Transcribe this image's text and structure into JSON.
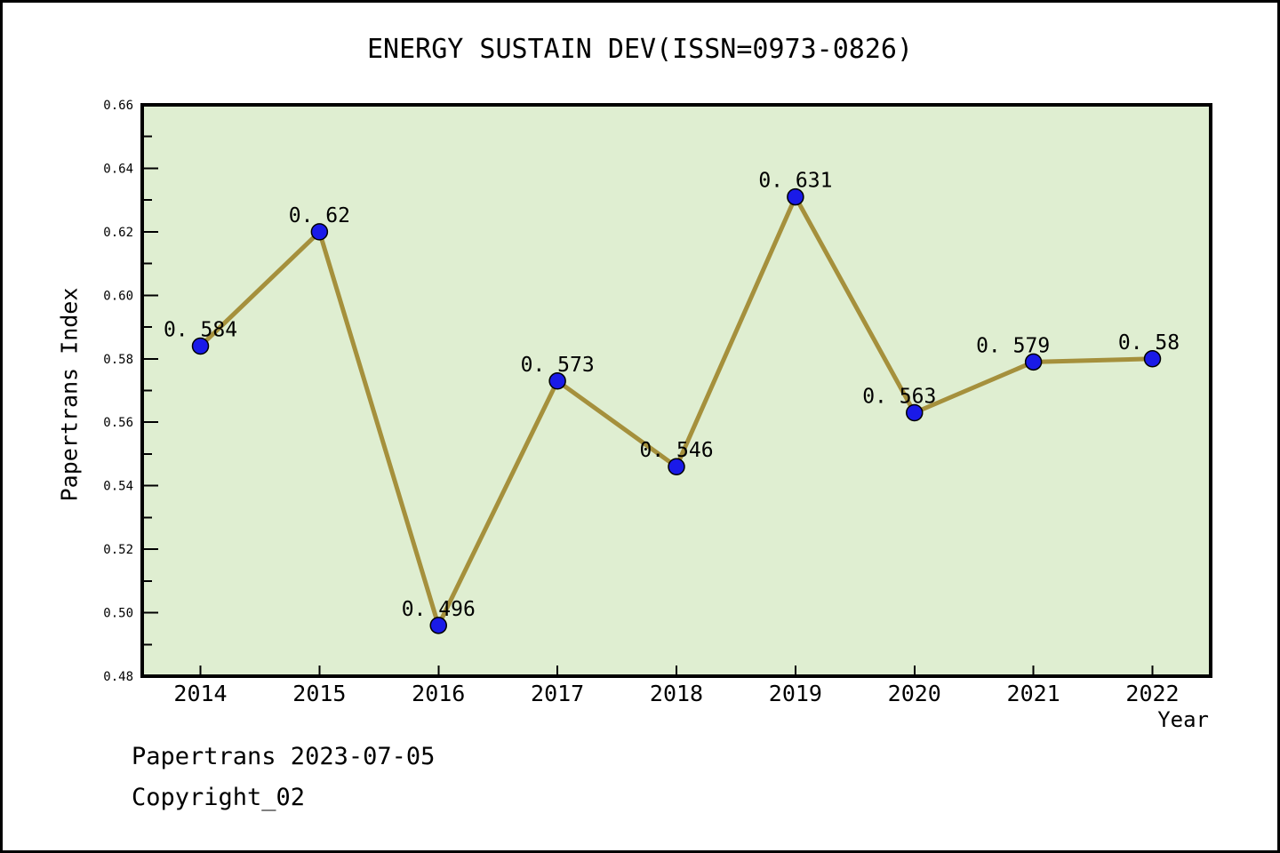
{
  "chart_data": {
    "type": "line",
    "title": "ENERGY SUSTAIN DEV(ISSN=0973-0826)",
    "xlabel": "Year",
    "ylabel": "Papertrans Index",
    "categories": [
      "2014",
      "2015",
      "2016",
      "2017",
      "2018",
      "2019",
      "2020",
      "2021",
      "2022"
    ],
    "series": [
      {
        "name": "Papertrans Index",
        "values": [
          0.584,
          0.62,
          0.496,
          0.573,
          0.546,
          0.631,
          0.563,
          0.579,
          0.58
        ]
      }
    ],
    "point_labels": [
      "0. 584",
      "0. 62",
      "0. 496",
      "0. 573",
      "0. 546",
      "0. 631",
      "0. 563",
      "0. 579",
      "0. 58"
    ],
    "ylim": [
      0.48,
      0.66
    ],
    "ytick_step": 0.02,
    "ytick_minor_step": 0.01,
    "ytick_labels": [
      "0.48",
      "0.50",
      "0.52",
      "0.54",
      "0.56",
      "0.58",
      "0.60",
      "0.62",
      "0.64",
      "0.66"
    ],
    "grid": false,
    "legend": "none",
    "colors": {
      "line": "#A5903C",
      "marker": "#1A1AE8",
      "marker_edge": "#000000",
      "plot_bg": "#DFEED1",
      "frame": "#000000",
      "text": "#000000",
      "canvas_bg": "#FFFFFF"
    },
    "label_dx": [
      0,
      0,
      0,
      0,
      0,
      0,
      -17,
      -23,
      -4
    ]
  },
  "footer": {
    "line1": "Papertrans 2023-07-05",
    "line2": "Copyright_02"
  }
}
